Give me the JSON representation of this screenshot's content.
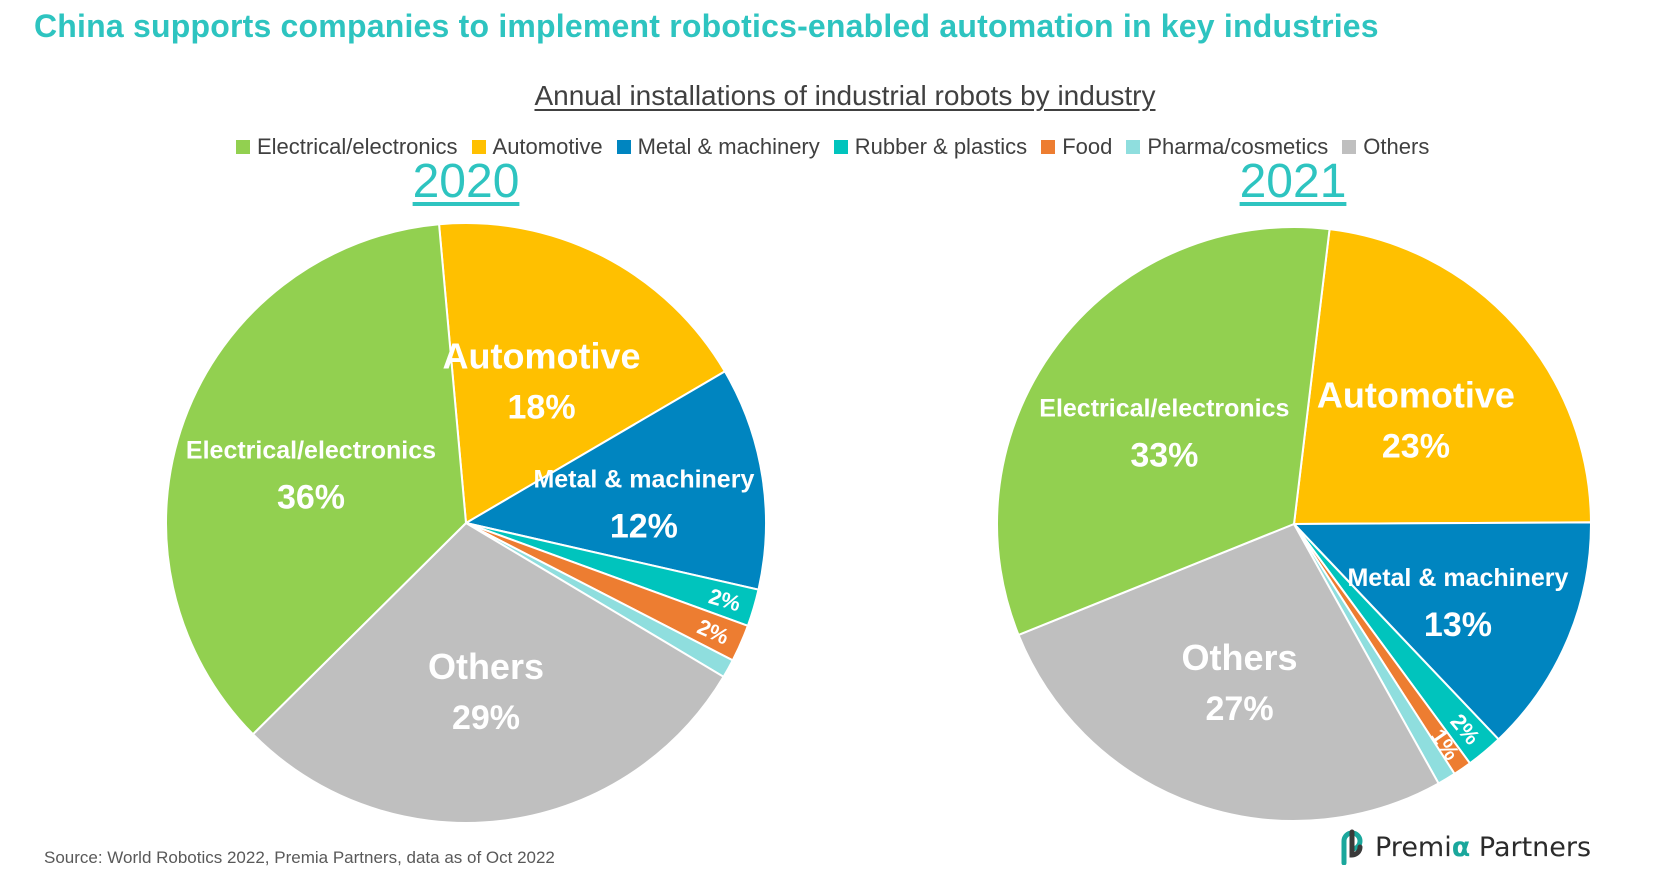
{
  "page": {
    "title": "China supports companies to implement robotics-enabled automation in key industries",
    "source": "Source: World Robotics 2022, Premia Partners, data as of Oct 2022",
    "logo": {
      "word1": "Premi",
      "alpha": "α",
      "word2": " Partners"
    }
  },
  "chart_data": {
    "type": "pie",
    "title": "Annual installations of industrial robots by industry",
    "legend_position": "top",
    "categories": [
      "Electrical/electronics",
      "Automotive",
      "Metal & machinery",
      "Rubber & plastics",
      "Food",
      "Pharma/cosmetics",
      "Others"
    ],
    "colors": [
      "#92d050",
      "#ffc000",
      "#0085c0",
      "#00c4bd",
      "#ed7d31",
      "#8fdede",
      "#bfbfbf"
    ],
    "pies": [
      {
        "name": "2020",
        "values": [
          36,
          18,
          12,
          2,
          2,
          1,
          29
        ],
        "labels": [
          "36%",
          "18%",
          "12%",
          "2%",
          "2%",
          "",
          "29%"
        ],
        "show_name": [
          true,
          true,
          true,
          false,
          false,
          false,
          true
        ]
      },
      {
        "name": "2021",
        "values": [
          33,
          23,
          13,
          2,
          1,
          1,
          27
        ],
        "labels": [
          "33%",
          "23%",
          "13%",
          "2%",
          "1%",
          "",
          "27%"
        ],
        "show_name": [
          true,
          true,
          true,
          false,
          false,
          false,
          true
        ]
      }
    ]
  }
}
